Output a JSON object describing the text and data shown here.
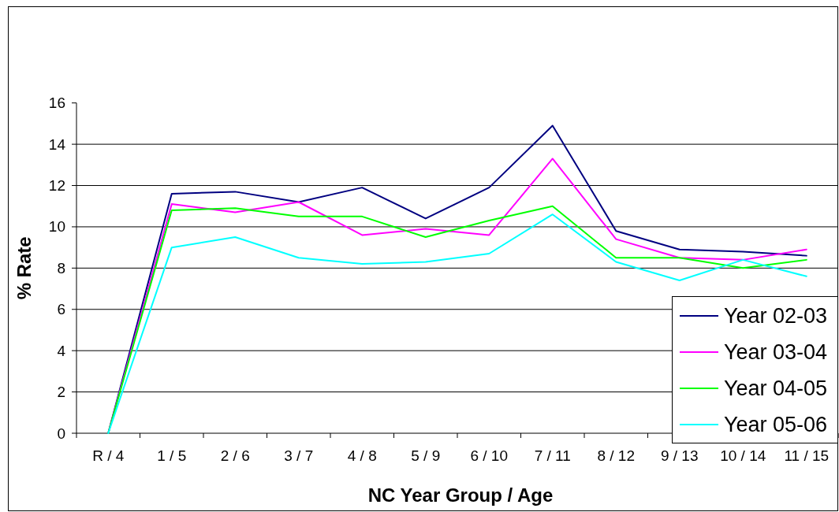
{
  "chart_data": {
    "type": "line",
    "xlabel": "NC Year Group / Age",
    "ylabel": "% Rate",
    "categories": [
      "R / 4",
      "1 / 5",
      "2 / 6",
      "3 / 7",
      "4 / 8",
      "5 / 9",
      "6 / 10",
      "7 / 11",
      "8 / 12",
      "9 / 13",
      "10 / 14",
      "11 / 15"
    ],
    "series": [
      {
        "name": "Year 02-03",
        "color": "#000080",
        "values": [
          0,
          11.6,
          11.7,
          11.2,
          11.9,
          10.4,
          11.9,
          14.9,
          9.8,
          8.9,
          8.8,
          8.6
        ]
      },
      {
        "name": "Year 03-04",
        "color": "#ff00ff",
        "values": [
          0,
          11.1,
          10.7,
          11.2,
          9.6,
          9.9,
          9.6,
          13.3,
          9.4,
          8.5,
          8.4,
          8.9
        ]
      },
      {
        "name": "Year 04-05",
        "color": "#00ff00",
        "values": [
          0,
          10.8,
          10.9,
          10.5,
          10.5,
          9.5,
          10.3,
          11.0,
          8.5,
          8.5,
          8.0,
          8.4
        ]
      },
      {
        "name": "Year 05-06",
        "color": "#00ffff",
        "values": [
          0,
          9.0,
          9.5,
          8.5,
          8.2,
          8.3,
          8.7,
          10.6,
          8.3,
          7.4,
          8.4,
          7.6
        ]
      }
    ],
    "ylim": [
      0,
      16
    ],
    "yticks": [
      0,
      2,
      4,
      6,
      8,
      10,
      12,
      14,
      16
    ],
    "grid": "y",
    "legend": "bottom right"
  }
}
